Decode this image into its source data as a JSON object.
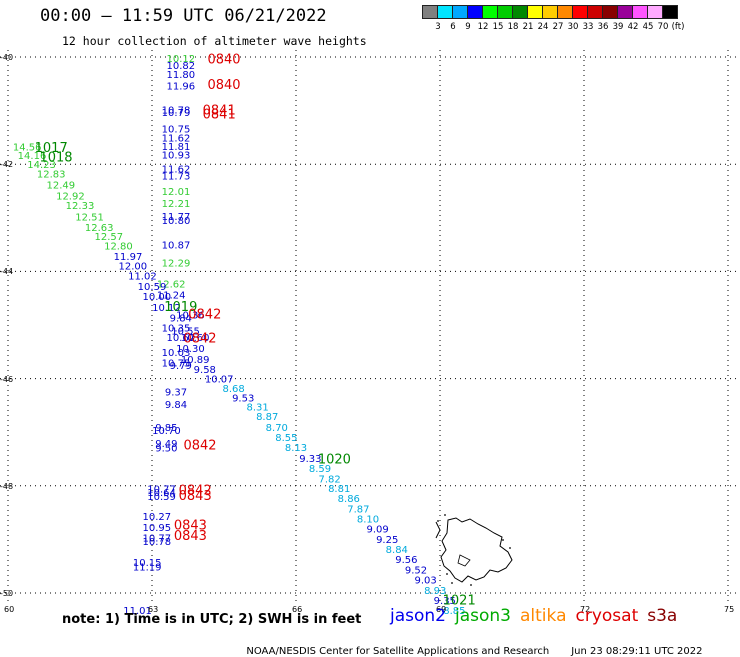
{
  "header": {
    "title": "00:00 – 11:59 UTC 06/21/2022",
    "subtitle": "12 hour collection of altimeter wave heights"
  },
  "legend": {
    "unit": "(ft)",
    "bins": [
      {
        "label": "3",
        "color": "#808080"
      },
      {
        "label": "6",
        "color": "#00e5ff"
      },
      {
        "label": "9",
        "color": "#00a8ff"
      },
      {
        "label": "12",
        "color": "#0000ff"
      },
      {
        "label": "15",
        "color": "#00ff00"
      },
      {
        "label": "18",
        "color": "#00cc00"
      },
      {
        "label": "21",
        "color": "#008800"
      },
      {
        "label": "24",
        "color": "#ffff00"
      },
      {
        "label": "27",
        "color": "#ffcc00"
      },
      {
        "label": "30",
        "color": "#ff8800"
      },
      {
        "label": "33",
        "color": "#ff0000"
      },
      {
        "label": "36",
        "color": "#cc0000"
      },
      {
        "label": "39",
        "color": "#880000"
      },
      {
        "label": "42",
        "color": "#990099"
      },
      {
        "label": "45",
        "color": "#ff55ff"
      },
      {
        "label": "70",
        "color": "#ffaaff"
      },
      {
        "label": "",
        "color": "#000000"
      }
    ]
  },
  "axes": {
    "lat_labels": [
      "-40",
      "-42",
      "-44",
      "-46",
      "-48",
      "-50"
    ],
    "lon_labels": [
      "60",
      "63",
      "66",
      "69",
      "72",
      "75"
    ]
  },
  "map_data": {
    "track_values": [
      {
        "t": "10.12",
        "c": "#33cc33",
        "lon": 63.6,
        "lat": -40.02
      },
      {
        "t": "10.82",
        "c": "#0000cc",
        "lon": 63.6,
        "lat": -40.15
      },
      {
        "t": "11.80",
        "c": "#0000cc",
        "lon": 63.6,
        "lat": -40.32
      },
      {
        "t": "11.96",
        "c": "#0000cc",
        "lon": 63.6,
        "lat": -40.53
      },
      {
        "t": "10.78",
        "c": "#0000cc",
        "lon": 63.5,
        "lat": -40.98
      },
      {
        "t": "10.79",
        "c": "#0000cc",
        "lon": 63.5,
        "lat": -41.03
      },
      {
        "t": "10.75",
        "c": "#0000cc",
        "lon": 63.5,
        "lat": -41.33
      },
      {
        "t": "11.62",
        "c": "#0000cc",
        "lon": 63.5,
        "lat": -41.5
      },
      {
        "t": "11.81",
        "c": "#0000cc",
        "lon": 63.5,
        "lat": -41.66
      },
      {
        "t": "10.93",
        "c": "#0000cc",
        "lon": 63.5,
        "lat": -41.82
      },
      {
        "t": "11.62",
        "c": "#0000cc",
        "lon": 63.5,
        "lat": -42.08
      },
      {
        "t": "11.73",
        "c": "#0000cc",
        "lon": 63.5,
        "lat": -42.21
      },
      {
        "t": "12.01",
        "c": "#33cc33",
        "lon": 63.5,
        "lat": -42.5
      },
      {
        "t": "12.21",
        "c": "#33cc33",
        "lon": 63.5,
        "lat": -42.72
      },
      {
        "t": "11.77",
        "c": "#0000cc",
        "lon": 63.5,
        "lat": -42.97
      },
      {
        "t": "10.80",
        "c": "#0000cc",
        "lon": 63.5,
        "lat": -43.04
      },
      {
        "t": "10.87",
        "c": "#0000cc",
        "lon": 63.5,
        "lat": -43.5
      },
      {
        "t": "12.29",
        "c": "#33cc33",
        "lon": 63.5,
        "lat": -43.83
      },
      {
        "t": "12.62",
        "c": "#33cc33",
        "lon": 63.4,
        "lat": -44.23
      },
      {
        "t": "11.24",
        "c": "#0000cc",
        "lon": 63.4,
        "lat": -44.43
      },
      {
        "t": "14.56",
        "c": "#33cc33",
        "lon": 60.4,
        "lat": -41.67
      },
      {
        "t": "14.16",
        "c": "#33cc33",
        "lon": 60.5,
        "lat": -41.83
      },
      {
        "t": "14.23",
        "c": "#33cc33",
        "lon": 60.7,
        "lat": -42.0
      },
      {
        "t": "12.83",
        "c": "#33cc33",
        "lon": 60.9,
        "lat": -42.17
      },
      {
        "t": "12.49",
        "c": "#33cc33",
        "lon": 61.1,
        "lat": -42.38
      },
      {
        "t": "12.92",
        "c": "#33cc33",
        "lon": 61.3,
        "lat": -42.58
      },
      {
        "t": "12.33",
        "c": "#33cc33",
        "lon": 61.5,
        "lat": -42.76
      },
      {
        "t": "12.51",
        "c": "#33cc33",
        "lon": 61.7,
        "lat": -42.98
      },
      {
        "t": "12.63",
        "c": "#33cc33",
        "lon": 61.9,
        "lat": -43.17
      },
      {
        "t": "12.57",
        "c": "#33cc33",
        "lon": 62.1,
        "lat": -43.34
      },
      {
        "t": "12.80",
        "c": "#33cc33",
        "lon": 62.3,
        "lat": -43.52
      },
      {
        "t": "11.97",
        "c": "#0000cc",
        "lon": 62.5,
        "lat": -43.71
      },
      {
        "t": "12.00",
        "c": "#0000cc",
        "lon": 62.6,
        "lat": -43.89
      },
      {
        "t": "11.02",
        "c": "#0000cc",
        "lon": 62.8,
        "lat": -44.08
      },
      {
        "t": "10.59",
        "c": "#0000cc",
        "lon": 63.0,
        "lat": -44.27
      },
      {
        "t": "10.00",
        "c": "#0000cc",
        "lon": 63.1,
        "lat": -44.46
      },
      {
        "t": "10.12",
        "c": "#0000cc",
        "lon": 63.3,
        "lat": -44.66
      },
      {
        "t": "10.36",
        "c": "#0000cc",
        "lon": 63.8,
        "lat": -44.8
      },
      {
        "t": "9.84",
        "c": "#0000cc",
        "lon": 63.6,
        "lat": -44.86
      },
      {
        "t": "10.35",
        "c": "#0000cc",
        "lon": 63.5,
        "lat": -45.05
      },
      {
        "t": "10.55",
        "c": "#0000cc",
        "lon": 63.7,
        "lat": -45.1
      },
      {
        "t": "10.62",
        "c": "#0000cc",
        "lon": 63.6,
        "lat": -45.22
      },
      {
        "t": "10.60",
        "c": "#0000cc",
        "lon": 63.9,
        "lat": -45.22
      },
      {
        "t": "10.30",
        "c": "#0000cc",
        "lon": 63.8,
        "lat": -45.43
      },
      {
        "t": "10.03",
        "c": "#0000cc",
        "lon": 63.5,
        "lat": -45.5
      },
      {
        "t": "10.89",
        "c": "#0000cc",
        "lon": 63.9,
        "lat": -45.63
      },
      {
        "t": "10.75",
        "c": "#0000cc",
        "lon": 63.5,
        "lat": -45.7
      },
      {
        "t": "9.79",
        "c": "#0000cc",
        "lon": 63.6,
        "lat": -45.75
      },
      {
        "t": "9.58",
        "c": "#0000cc",
        "lon": 64.1,
        "lat": -45.82
      },
      {
        "t": "10.07",
        "c": "#0000cc",
        "lon": 64.4,
        "lat": -46.0
      },
      {
        "t": "9.37",
        "c": "#0000cc",
        "lon": 63.5,
        "lat": -46.24
      },
      {
        "t": "8.68",
        "c": "#00aadd",
        "lon": 64.7,
        "lat": -46.18
      },
      {
        "t": "9.53",
        "c": "#0000cc",
        "lon": 64.9,
        "lat": -46.35
      },
      {
        "t": "9.84",
        "c": "#0000cc",
        "lon": 63.5,
        "lat": -46.47
      },
      {
        "t": "8.31",
        "c": "#00aadd",
        "lon": 65.2,
        "lat": -46.52
      },
      {
        "t": "8.87",
        "c": "#00aadd",
        "lon": 65.4,
        "lat": -46.7
      },
      {
        "t": "9.85",
        "c": "#0000cc",
        "lon": 63.3,
        "lat": -46.9
      },
      {
        "t": "10.70",
        "c": "#0000cc",
        "lon": 63.3,
        "lat": -46.96
      },
      {
        "t": "8.70",
        "c": "#00aadd",
        "lon": 65.6,
        "lat": -46.9
      },
      {
        "t": "8.55",
        "c": "#00aadd",
        "lon": 65.8,
        "lat": -47.09
      },
      {
        "t": "9.49",
        "c": "#0000cc",
        "lon": 63.3,
        "lat": -47.2
      },
      {
        "t": "9.50",
        "c": "#0000cc",
        "lon": 63.3,
        "lat": -47.29
      },
      {
        "t": "8.13",
        "c": "#00aadd",
        "lon": 66.0,
        "lat": -47.28
      },
      {
        "t": "9.33",
        "c": "#0000cc",
        "lon": 66.3,
        "lat": -47.48
      },
      {
        "t": "8.59",
        "c": "#00aadd",
        "lon": 66.5,
        "lat": -47.67
      },
      {
        "t": "7.82",
        "c": "#00aadd",
        "lon": 66.7,
        "lat": -47.86
      },
      {
        "t": "8.81",
        "c": "#00aadd",
        "lon": 66.9,
        "lat": -48.04
      },
      {
        "t": "8.86",
        "c": "#00aadd",
        "lon": 67.1,
        "lat": -48.23
      },
      {
        "t": "7.87",
        "c": "#00aadd",
        "lon": 67.3,
        "lat": -48.42
      },
      {
        "t": "8.10",
        "c": "#00aadd",
        "lon": 67.5,
        "lat": -48.61
      },
      {
        "t": "9.09",
        "c": "#0000cc",
        "lon": 67.7,
        "lat": -48.8
      },
      {
        "t": "9.25",
        "c": "#0000cc",
        "lon": 67.9,
        "lat": -48.99
      },
      {
        "t": "8.84",
        "c": "#00aadd",
        "lon": 68.1,
        "lat": -49.18
      },
      {
        "t": "9.56",
        "c": "#0000cc",
        "lon": 68.3,
        "lat": -49.37
      },
      {
        "t": "9.52",
        "c": "#0000cc",
        "lon": 68.5,
        "lat": -49.56
      },
      {
        "t": "9.03",
        "c": "#0000cc",
        "lon": 68.7,
        "lat": -49.75
      },
      {
        "t": "8.93",
        "c": "#00aadd",
        "lon": 68.9,
        "lat": -49.94
      },
      {
        "t": "9.35",
        "c": "#0000cc",
        "lon": 69.1,
        "lat": -50.13
      },
      {
        "t": "8.85",
        "c": "#00aadd",
        "lon": 69.3,
        "lat": -50.32
      },
      {
        "t": "10.77",
        "c": "#0000cc",
        "lon": 63.2,
        "lat": -48.05
      },
      {
        "t": "10.64",
        "c": "#0000cc",
        "lon": 63.2,
        "lat": -48.12
      },
      {
        "t": "10.59",
        "c": "#0000cc",
        "lon": 63.2,
        "lat": -48.19
      },
      {
        "t": "10.27",
        "c": "#0000cc",
        "lon": 63.1,
        "lat": -48.56
      },
      {
        "t": "10.95",
        "c": "#0000cc",
        "lon": 63.1,
        "lat": -48.77
      },
      {
        "t": "10.77",
        "c": "#0000cc",
        "lon": 63.1,
        "lat": -48.96
      },
      {
        "t": "10.78",
        "c": "#0000cc",
        "lon": 63.1,
        "lat": -49.03
      },
      {
        "t": "10.15",
        "c": "#0000cc",
        "lon": 62.9,
        "lat": -49.42
      },
      {
        "t": "11.19",
        "c": "#0000cc",
        "lon": 62.9,
        "lat": -49.51
      },
      {
        "t": "11.01",
        "c": "#0000cc",
        "lon": 62.7,
        "lat": -50.32
      }
    ],
    "time_labels": [
      {
        "t": "0840",
        "c": "#dd0000",
        "lon": 64.5,
        "lat": -40.03
      },
      {
        "t": "0840",
        "c": "#dd0000",
        "lon": 64.5,
        "lat": -40.5
      },
      {
        "t": "0841",
        "c": "#dd0000",
        "lon": 64.4,
        "lat": -40.98
      },
      {
        "t": "0841",
        "c": "#dd0000",
        "lon": 64.4,
        "lat": -41.05
      },
      {
        "t": "1017",
        "c": "#008800",
        "lon": 60.9,
        "lat": -41.68
      },
      {
        "t": "1018",
        "c": "#008800",
        "lon": 61.0,
        "lat": -41.86
      },
      {
        "t": "1019",
        "c": "#008800",
        "lon": 63.6,
        "lat": -44.65
      },
      {
        "t": "0842",
        "c": "#dd0000",
        "lon": 64.1,
        "lat": -44.79
      },
      {
        "t": "0842",
        "c": "#dd0000",
        "lon": 64.0,
        "lat": -45.23
      },
      {
        "t": "0842",
        "c": "#dd0000",
        "lon": 64.0,
        "lat": -47.23
      },
      {
        "t": "1020",
        "c": "#008800",
        "lon": 66.8,
        "lat": -47.49
      },
      {
        "t": "0842",
        "c": "#dd0000",
        "lon": 63.9,
        "lat": -48.07
      },
      {
        "t": "0843",
        "c": "#dd0000",
        "lon": 63.9,
        "lat": -48.17
      },
      {
        "t": "0843",
        "c": "#dd0000",
        "lon": 63.8,
        "lat": -48.72
      },
      {
        "t": "0843",
        "c": "#dd0000",
        "lon": 63.8,
        "lat": -48.92
      },
      {
        "t": "1021",
        "c": "#008800",
        "lon": 69.4,
        "lat": -50.12
      }
    ]
  },
  "footer": {
    "note": "note: 1) Time is in UTC; 2) SWH is in feet",
    "satellites": [
      {
        "name": "jason2",
        "color": "#0000ee"
      },
      {
        "name": "jason3",
        "color": "#00aa00"
      },
      {
        "name": "altika",
        "color": "#ff8800"
      },
      {
        "name": "cryosat",
        "color": "#dd0000"
      },
      {
        "name": "s3a",
        "color": "#880000"
      }
    ],
    "credit": "NOAA/NESDIS Center for Satellite Applications and Research",
    "timestamp": "Jun 23 08:29:11 UTC 2022"
  }
}
